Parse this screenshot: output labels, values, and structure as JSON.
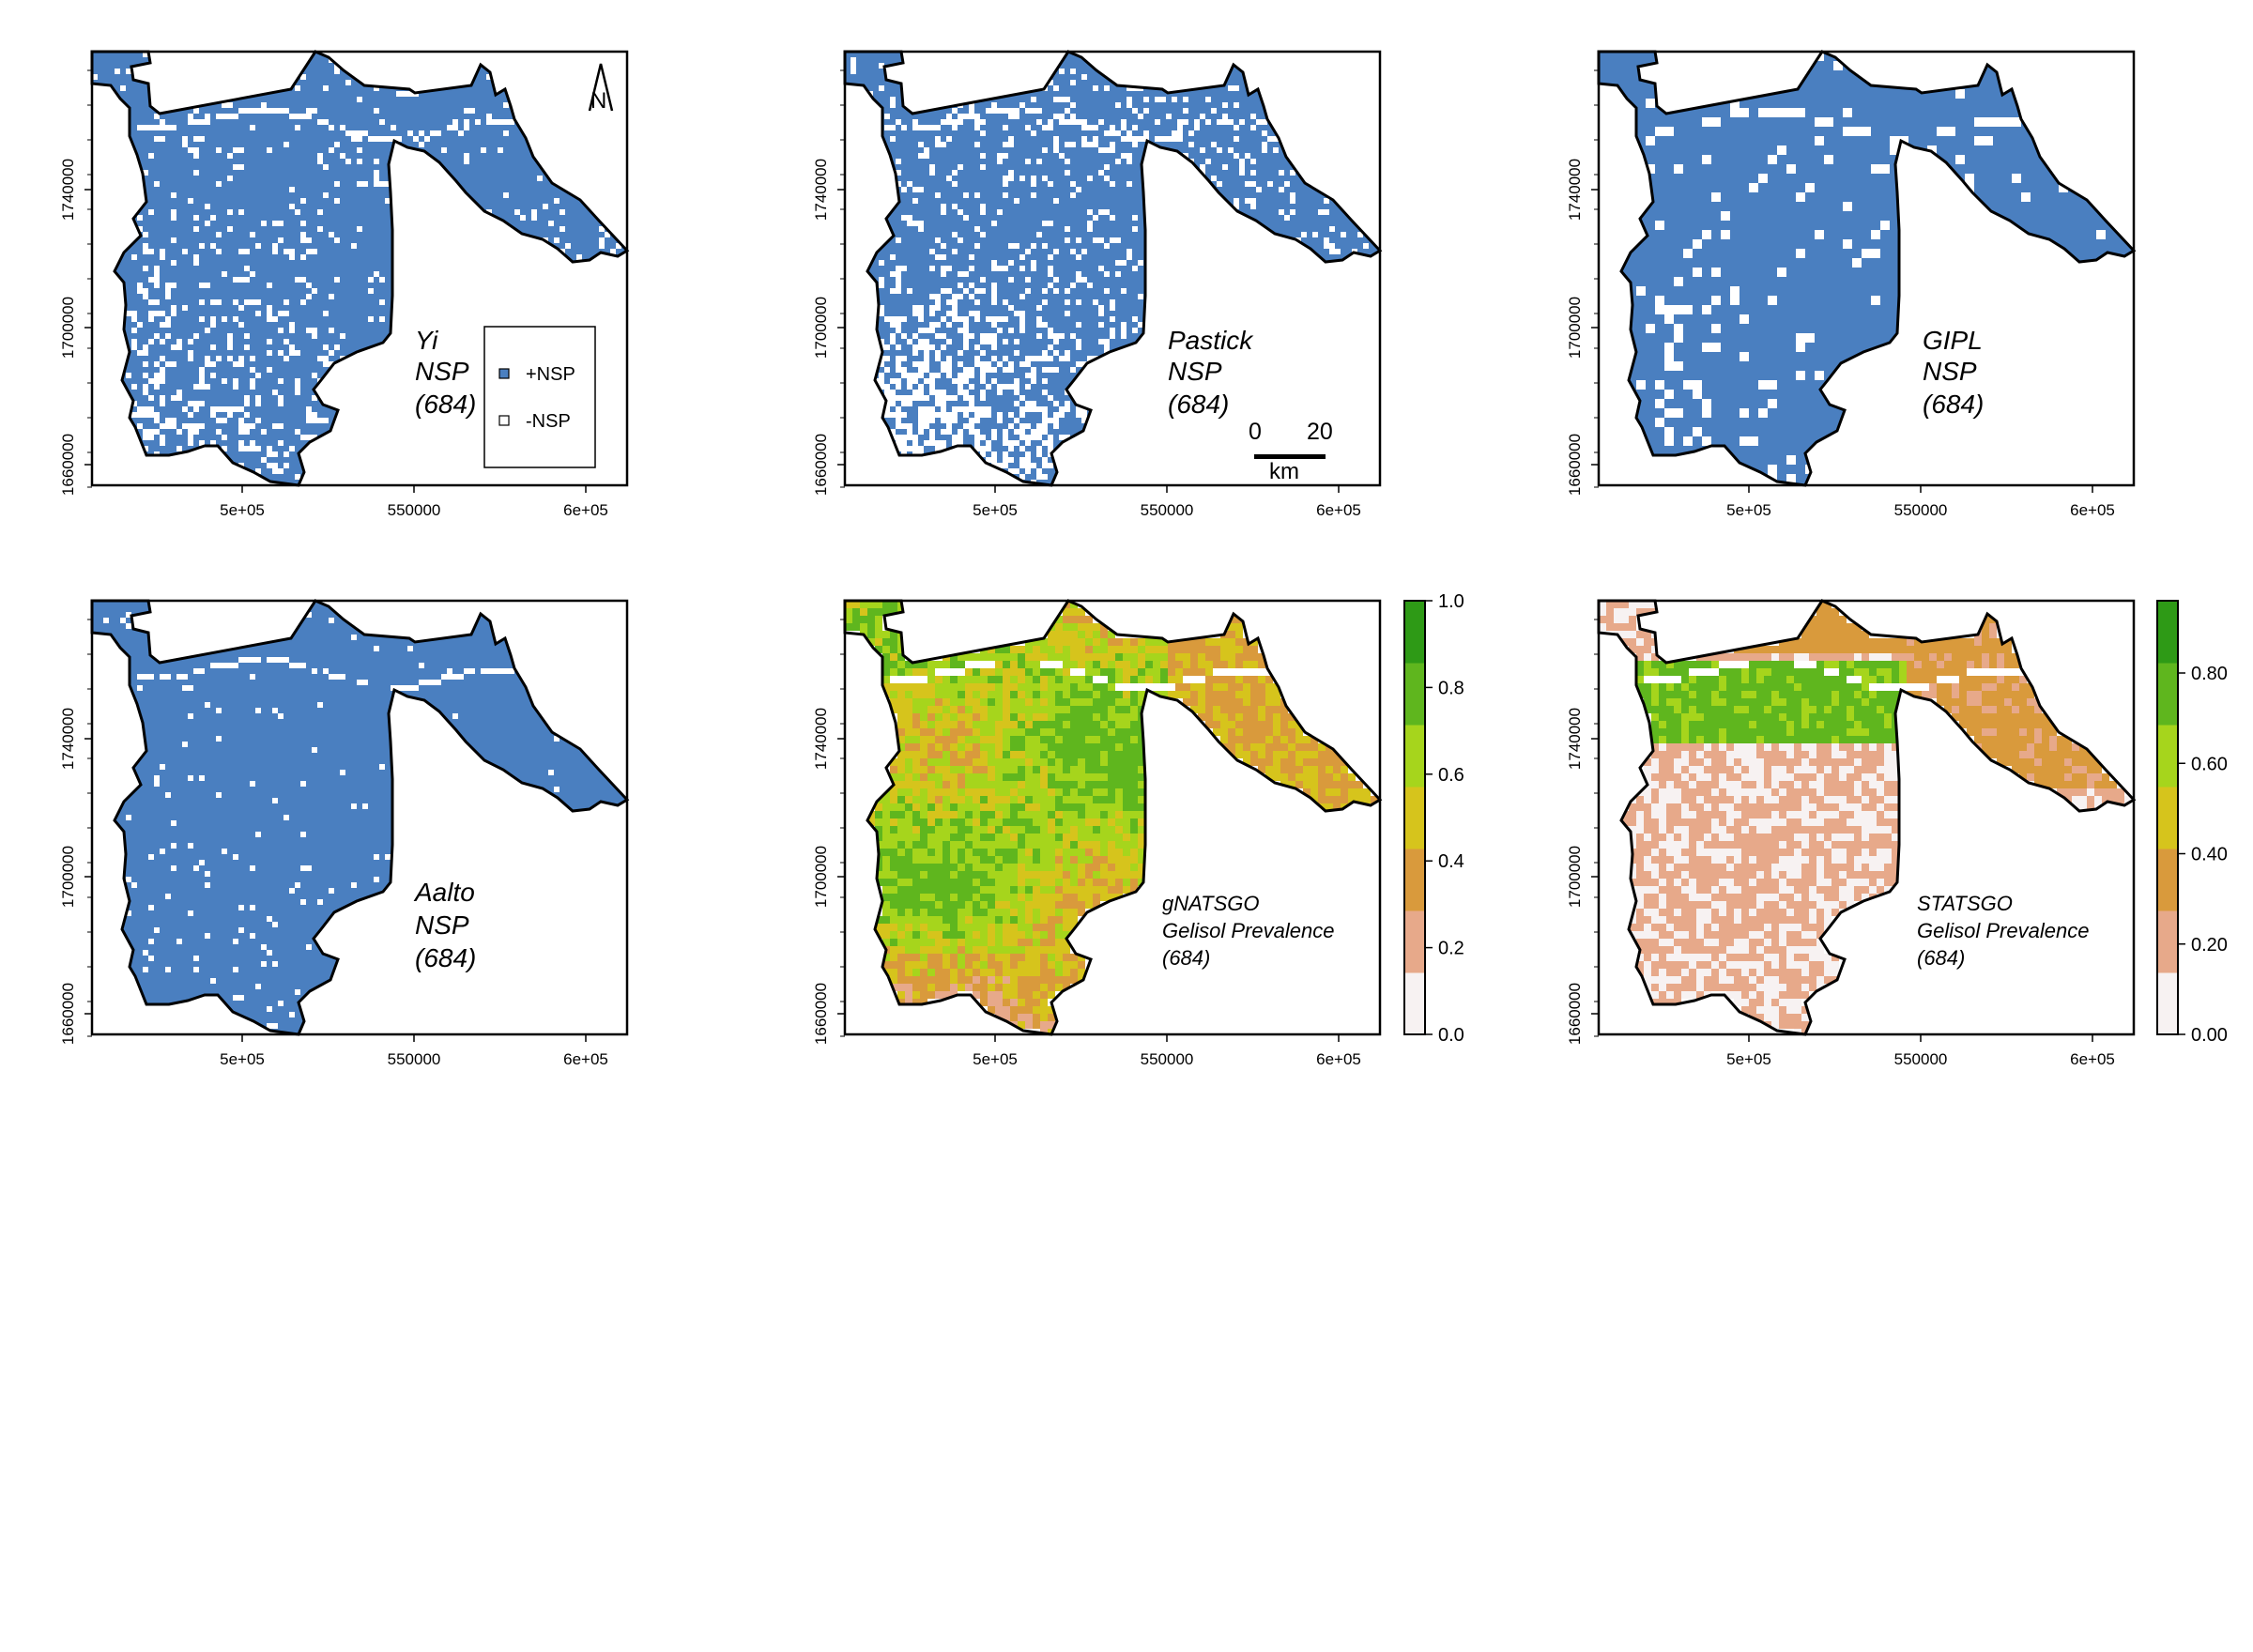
{
  "colors": {
    "nsp_positive": "#4a7fc0",
    "nsp_negative": "#ffffff",
    "outline": "#000000",
    "colormap": [
      "#f7f2f2",
      "#e7a98a",
      "#d99a3c",
      "#d6c41c",
      "#a6d51c",
      "#5fb61e",
      "#2e9a16"
    ]
  },
  "axes": {
    "x_ticks": [
      "5e+05",
      "550000",
      "6e+05"
    ],
    "y_ticks": [
      "1660000",
      "1700000",
      "1740000"
    ]
  },
  "panels": [
    {
      "id": "yi",
      "type": "binary",
      "label_lines": [
        "Yi",
        "NSP",
        "(684)"
      ],
      "positive_fraction": 0.78
    },
    {
      "id": "pastick",
      "type": "binary",
      "label_lines": [
        "Pastick",
        "NSP",
        "(684)"
      ],
      "positive_fraction": 0.62
    },
    {
      "id": "gipl",
      "type": "binary",
      "label_lines": [
        "GIPL",
        "NSP",
        "(684)"
      ],
      "positive_fraction": 0.88
    },
    {
      "id": "aalto",
      "type": "binary",
      "label_lines": [
        "Aalto",
        "NSP",
        "(684)"
      ],
      "positive_fraction": 0.95
    },
    {
      "id": "gnatsgo",
      "type": "continuous",
      "label_lines": [
        "gNATSGO",
        "Gelisol Prevalence",
        "(684)"
      ],
      "colorbar": {
        "ticks": [
          "0.0",
          "0.2",
          "0.4",
          "0.6",
          "0.8",
          "1.0"
        ],
        "range": [
          0,
          1
        ]
      }
    },
    {
      "id": "statsgo",
      "type": "continuous",
      "label_lines": [
        "STATSGO",
        "Gelisol Prevalence",
        "(684)"
      ],
      "colorbar": {
        "ticks": [
          "0.00",
          "0.20",
          "0.40",
          "0.60",
          "0.80"
        ],
        "range": [
          0,
          0.96
        ]
      }
    }
  ],
  "legend": {
    "items": [
      {
        "label": "+NSP"
      },
      {
        "label": "-NSP"
      }
    ]
  },
  "scale_bar": {
    "ticks": [
      "0",
      "20"
    ],
    "unit": "km"
  },
  "north_arrow": {
    "label": "N"
  }
}
